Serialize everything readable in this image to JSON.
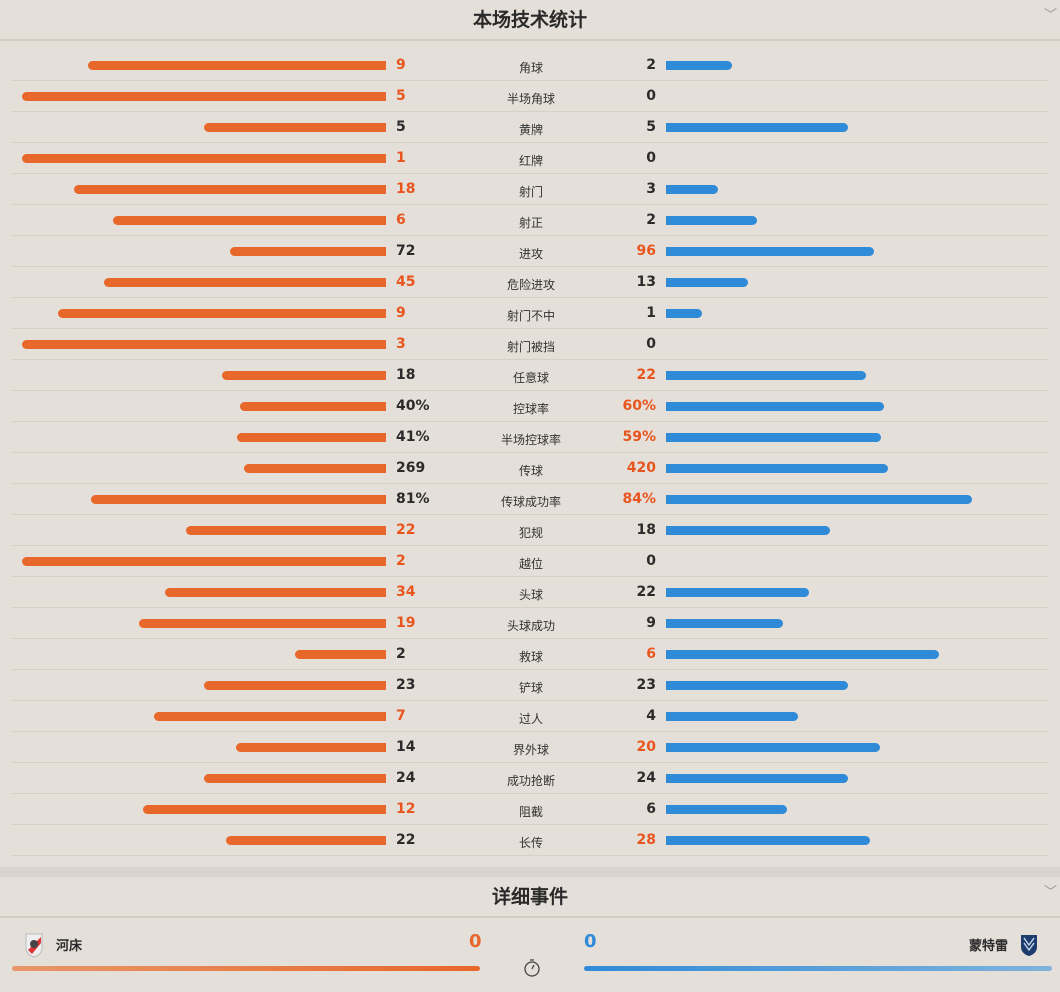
{
  "stats_section": {
    "title": "本场技术统计",
    "collapse_icon": "chevron-down-icon"
  },
  "colors": {
    "home": "#e8672a",
    "away": "#2f8ad8",
    "highlight": "#e8551e"
  },
  "stats": [
    {
      "label": "角球",
      "home": "9",
      "away": "2"
    },
    {
      "label": "半场角球",
      "home": "5",
      "away": "0"
    },
    {
      "label": "黄牌",
      "home": "5",
      "away": "5"
    },
    {
      "label": "红牌",
      "home": "1",
      "away": "0"
    },
    {
      "label": "射门",
      "home": "18",
      "away": "3"
    },
    {
      "label": "射正",
      "home": "6",
      "away": "2"
    },
    {
      "label": "进攻",
      "home": "72",
      "away": "96"
    },
    {
      "label": "危险进攻",
      "home": "45",
      "away": "13"
    },
    {
      "label": "射门不中",
      "home": "9",
      "away": "1"
    },
    {
      "label": "射门被挡",
      "home": "3",
      "away": "0"
    },
    {
      "label": "任意球",
      "home": "18",
      "away": "22"
    },
    {
      "label": "控球率",
      "home": "40%",
      "away": "60%"
    },
    {
      "label": "半场控球率",
      "home": "41%",
      "away": "59%"
    },
    {
      "label": "传球",
      "home": "269",
      "away": "420"
    },
    {
      "label": "传球成功率",
      "home": "81%",
      "away": "84%"
    },
    {
      "label": "犯规",
      "home": "22",
      "away": "18"
    },
    {
      "label": "越位",
      "home": "2",
      "away": "0"
    },
    {
      "label": "头球",
      "home": "34",
      "away": "22"
    },
    {
      "label": "头球成功",
      "home": "19",
      "away": "9"
    },
    {
      "label": "救球",
      "home": "2",
      "away": "6"
    },
    {
      "label": "铲球",
      "home": "23",
      "away": "23"
    },
    {
      "label": "过人",
      "home": "7",
      "away": "4"
    },
    {
      "label": "界外球",
      "home": "14",
      "away": "20"
    },
    {
      "label": "成功抢断",
      "home": "24",
      "away": "24"
    },
    {
      "label": "阻截",
      "home": "12",
      "away": "6"
    },
    {
      "label": "长传",
      "home": "22",
      "away": "28"
    }
  ],
  "events_section": {
    "title": "详细事件",
    "collapse_icon": "chevron-down-icon",
    "home": {
      "name": "河床",
      "score": "0"
    },
    "away": {
      "name": "蒙特雷",
      "score": "0"
    },
    "timer_icon": "stopwatch-icon"
  }
}
